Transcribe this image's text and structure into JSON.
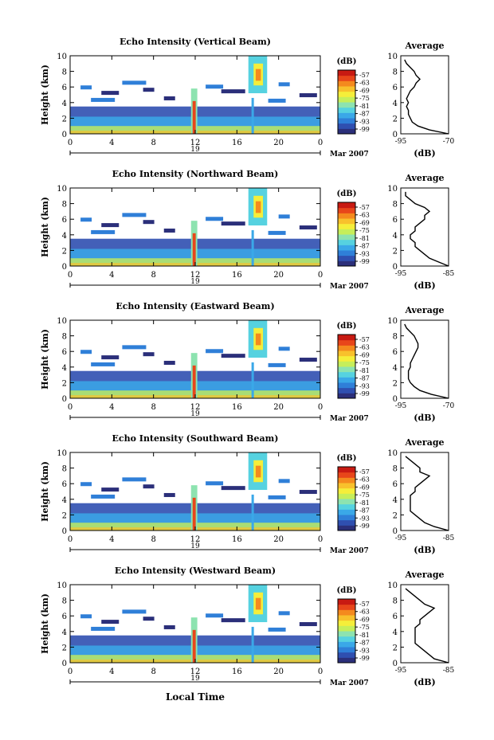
{
  "colorbar_colors": [
    "#2b2f7a",
    "#2f4fb0",
    "#2f7fd8",
    "#3aa8e8",
    "#56d2e0",
    "#8de3b0",
    "#c6ee5a",
    "#f5ee3a",
    "#f8c12c",
    "#f48a1e",
    "#e8461a",
    "#c81a12"
  ],
  "chart_data": [
    {
      "type": "heatmap",
      "title": "Echo Intensity (Vertical Beam)",
      "ylabel": "Height (km)",
      "ylim": [
        0,
        10
      ],
      "xlim": [
        0,
        24
      ],
      "xticks": [
        "0",
        "4",
        "8",
        "12",
        "16",
        "20",
        "0"
      ],
      "date_marker": "19",
      "date_label": "Mar 2007",
      "colorbar_unit": "(dB)",
      "colorbar_ticks": [
        "-57",
        "-63",
        "-69",
        "-75",
        "-81",
        "-87",
        "-93",
        "-99"
      ],
      "profile": {
        "title": "Average",
        "xlabel": "(dB)",
        "xticks": [
          "-95",
          "-70"
        ],
        "xlim": [
          -95,
          -70
        ],
        "heights": [
          0,
          0.5,
          1,
          1.5,
          2,
          2.5,
          3,
          3.5,
          4,
          4.5,
          5,
          5.5,
          6,
          6.5,
          7,
          7.5,
          8,
          8.5,
          9,
          9.5
        ],
        "values": [
          -70,
          -80,
          -86,
          -89,
          -90,
          -91,
          -91,
          -92,
          -91,
          -92,
          -91,
          -90,
          -88,
          -87,
          -85,
          -87,
          -88,
          -90,
          -92,
          -93
        ]
      }
    },
    {
      "type": "heatmap",
      "title": "Echo Intensity (Northward Beam)",
      "ylabel": "Height (km)",
      "ylim": [
        0,
        10
      ],
      "xlim": [
        0,
        24
      ],
      "xticks": [
        "0",
        "4",
        "8",
        "12",
        "16",
        "20",
        "0"
      ],
      "date_marker": "19",
      "date_label": "Mar 2007",
      "colorbar_unit": "(dB)",
      "colorbar_ticks": [
        "-57",
        "-63",
        "-69",
        "-75",
        "-81",
        "-87",
        "-93",
        "-99"
      ],
      "profile": {
        "title": "Average",
        "xlabel": "(dB)",
        "xticks": [
          "-95",
          "-85"
        ],
        "xlim": [
          -95,
          -85
        ],
        "heights": [
          0,
          0.5,
          1,
          1.5,
          2,
          2.5,
          3,
          3.5,
          4,
          4.5,
          5,
          5.5,
          6,
          6.5,
          7,
          7.5,
          8,
          8.5,
          9,
          9.5
        ],
        "values": [
          -85,
          -87,
          -89,
          -90,
          -91,
          -92,
          -92,
          -93,
          -93,
          -92,
          -92,
          -91,
          -90,
          -90,
          -89,
          -90,
          -92,
          -93,
          -94,
          -94
        ]
      }
    },
    {
      "type": "heatmap",
      "title": "Echo Intensity (Eastward Beam)",
      "ylabel": "Height (km)",
      "ylim": [
        0,
        10
      ],
      "xlim": [
        0,
        24
      ],
      "xticks": [
        "0",
        "4",
        "8",
        "12",
        "16",
        "20",
        "0"
      ],
      "date_marker": "19",
      "date_label": "Mar 2007",
      "colorbar_unit": "(dB)",
      "colorbar_ticks": [
        "-57",
        "-63",
        "-69",
        "-75",
        "-81",
        "-87",
        "-93",
        "-99"
      ],
      "profile": {
        "title": "Average",
        "xlabel": "(dB)",
        "xticks": [
          "-95",
          "-70"
        ],
        "xlim": [
          -95,
          -70
        ],
        "heights": [
          0,
          0.5,
          1,
          1.5,
          2,
          2.5,
          3,
          3.5,
          4,
          4.5,
          5,
          5.5,
          6,
          6.5,
          7,
          7.5,
          8,
          8.5,
          9,
          9.5
        ],
        "values": [
          -70,
          -79,
          -85,
          -88,
          -90,
          -91,
          -91,
          -91,
          -90,
          -90,
          -89,
          -88,
          -87,
          -86,
          -86,
          -87,
          -88,
          -90,
          -92,
          -93
        ]
      }
    },
    {
      "type": "heatmap",
      "title": "Echo Intensity (Southward Beam)",
      "ylabel": "Height (km)",
      "ylim": [
        0,
        10
      ],
      "xlim": [
        0,
        24
      ],
      "xticks": [
        "0",
        "4",
        "8",
        "12",
        "16",
        "20",
        "0"
      ],
      "date_marker": "19",
      "date_label": "Mar 2007",
      "colorbar_unit": "(dB)",
      "colorbar_ticks": [
        "-57",
        "-63",
        "-69",
        "-75",
        "-81",
        "-87",
        "-93",
        "-99"
      ],
      "profile": {
        "title": "Average",
        "xlabel": "(dB)",
        "xticks": [
          "-95",
          "-85"
        ],
        "xlim": [
          -95,
          -85
        ],
        "heights": [
          0,
          0.5,
          1,
          1.5,
          2,
          2.5,
          3,
          3.5,
          4,
          4.5,
          5,
          5.5,
          6,
          6.5,
          7,
          7.5,
          8,
          8.5,
          9,
          9.5
        ],
        "values": [
          -85,
          -88,
          -90,
          -91,
          -92,
          -93,
          -93,
          -93,
          -93,
          -93,
          -92,
          -92,
          -91,
          -90,
          -89,
          -91,
          -91,
          -92,
          -93,
          -94
        ]
      }
    },
    {
      "type": "heatmap",
      "title": "Echo Intensity (Westward Beam)",
      "ylabel": "Height (km)",
      "ylim": [
        0,
        10
      ],
      "xlim": [
        0,
        24
      ],
      "xticks": [
        "0",
        "4",
        "8",
        "12",
        "16",
        "20",
        "0"
      ],
      "date_marker": "19",
      "date_label": "Mar 2007",
      "colorbar_unit": "(dB)",
      "colorbar_ticks": [
        "-57",
        "-63",
        "-69",
        "-75",
        "-81",
        "-87",
        "-93",
        "-99"
      ],
      "profile": {
        "title": "Average",
        "xlabel": "(dB)",
        "xticks": [
          "-95",
          "-85"
        ],
        "xlim": [
          -95,
          -85
        ],
        "heights": [
          0,
          0.5,
          1,
          1.5,
          2,
          2.5,
          3,
          3.5,
          4,
          4.5,
          5,
          5.5,
          6,
          6.5,
          7,
          7.5,
          8,
          8.5,
          9,
          9.5
        ],
        "values": [
          -85,
          -88,
          -89,
          -90,
          -91,
          -92,
          -92,
          -92,
          -92,
          -92,
          -91,
          -91,
          -90,
          -89,
          -88,
          -90,
          -91,
          -92,
          -93,
          -94
        ]
      }
    }
  ],
  "xlabel_shared": "Local Time"
}
